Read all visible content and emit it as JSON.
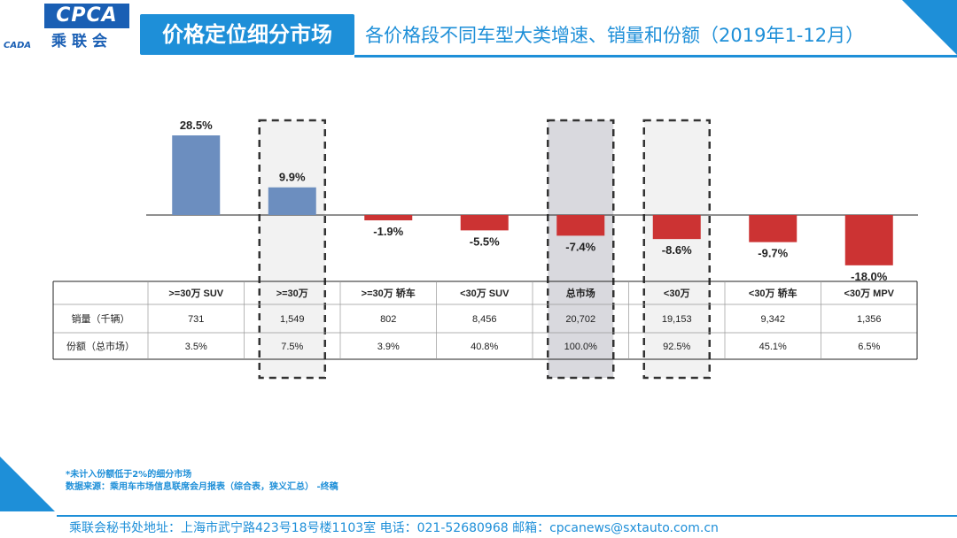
{
  "header": {
    "logo_text": "CPCA",
    "logo_cn": "乘联会",
    "logo_sub": "CADA",
    "title": "价格定位细分市场",
    "subtitle": "各价格段不同车型大类增速、销量和份额（2019年1-12月）"
  },
  "colors": {
    "positive": "#6c8ebf",
    "negative": "#cc3333",
    "accent": "#1e8fd8",
    "highlight": "#d9d9de"
  },
  "chart_data": {
    "type": "bar",
    "title": "各价格段不同车型大类增速、销量和份额（2019年1-12月）",
    "categories": [
      ">=30万 SUV",
      ">=30万",
      ">=30万 轿车",
      "<30万 SUV",
      "总市场",
      "<30万",
      "<30万 轿车",
      "<30万 MPV"
    ],
    "values": [
      28.5,
      9.9,
      -1.9,
      -5.5,
      -7.4,
      -8.6,
      -9.7,
      -18.0
    ],
    "value_labels": [
      "28.5%",
      "9.9%",
      "-1.9%",
      "-5.5%",
      "-7.4%",
      "-8.6%",
      "-9.7%",
      "-18.0%"
    ],
    "ylim": [
      -18.0,
      28.5
    ],
    "highlighted": [
      1,
      4,
      5
    ],
    "shaded": [
      4
    ],
    "table": {
      "headers": [
        ">=30万 SUV",
        ">=30万",
        ">=30万 轿车",
        "<30万 SUV",
        "总市场",
        "<30万",
        "<30万 轿车",
        "<30万 MPV"
      ],
      "rows": [
        {
          "label": "销量（千辆）",
          "values": [
            "731",
            "1,549",
            "802",
            "8,456",
            "20,702",
            "19,153",
            "9,342",
            "1,356"
          ]
        },
        {
          "label": "份额（总市场）",
          "values": [
            "3.5%",
            "7.5%",
            "3.9%",
            "40.8%",
            "100.0%",
            "92.5%",
            "45.1%",
            "6.5%"
          ]
        }
      ]
    }
  },
  "notes": {
    "line1": "*未计入份额低于2%的细分市场",
    "line2": "数据来源：乘用车市场信息联席会月报表（综合表，狭义汇总）  -终稿"
  },
  "footer": {
    "text": "乘联会秘书处地址：上海市武宁路423号18号楼1103室  电话：021-52680968  邮箱：cpcanews@sxtauto.com.cn"
  }
}
